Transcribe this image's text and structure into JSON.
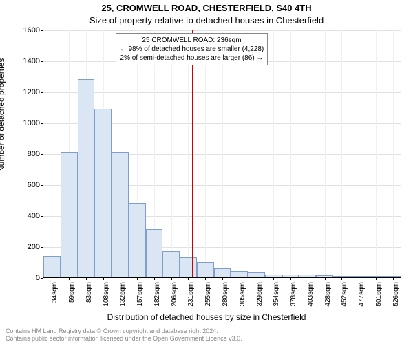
{
  "title_line1": "25, CROMWELL ROAD, CHESTERFIELD, S40 4TH",
  "title_line2": "Size of property relative to detached houses in Chesterfield",
  "ylabel": "Number of detached properties",
  "xlabel": "Distribution of detached houses by size in Chesterfield",
  "footer_line1": "Contains HM Land Registry data © Crown copyright and database right 2024.",
  "footer_line2": "Contains public sector information licensed under the Open Government Licence v3.0.",
  "chart": {
    "type": "histogram",
    "ymax": 1600,
    "ytick_step": 200,
    "bar_fill": "#dbe6f4",
    "bar_stroke": "#7f9ecb",
    "grid_color": "#e0e0e0",
    "background_color": "#ffffff",
    "marker_color": "#cc0000",
    "marker_value": 236,
    "xticks": [
      "34sqm",
      "59sqm",
      "83sqm",
      "108sqm",
      "132sqm",
      "157sqm",
      "182sqm",
      "206sqm",
      "231sqm",
      "255sqm",
      "280sqm",
      "305sqm",
      "329sqm",
      "354sqm",
      "378sqm",
      "403sqm",
      "428sqm",
      "452sqm",
      "477sqm",
      "501sqm",
      "526sqm"
    ],
    "values": [
      140,
      810,
      1280,
      1090,
      810,
      480,
      310,
      170,
      130,
      100,
      60,
      40,
      30,
      20,
      20,
      20,
      15,
      10,
      8,
      5,
      4
    ],
    "annotation": {
      "line1": "25 CROMWELL ROAD: 236sqm",
      "line2": "← 98% of detached houses are smaller (4,228)",
      "line3": "2% of semi-detached houses are larger (86) →"
    }
  }
}
